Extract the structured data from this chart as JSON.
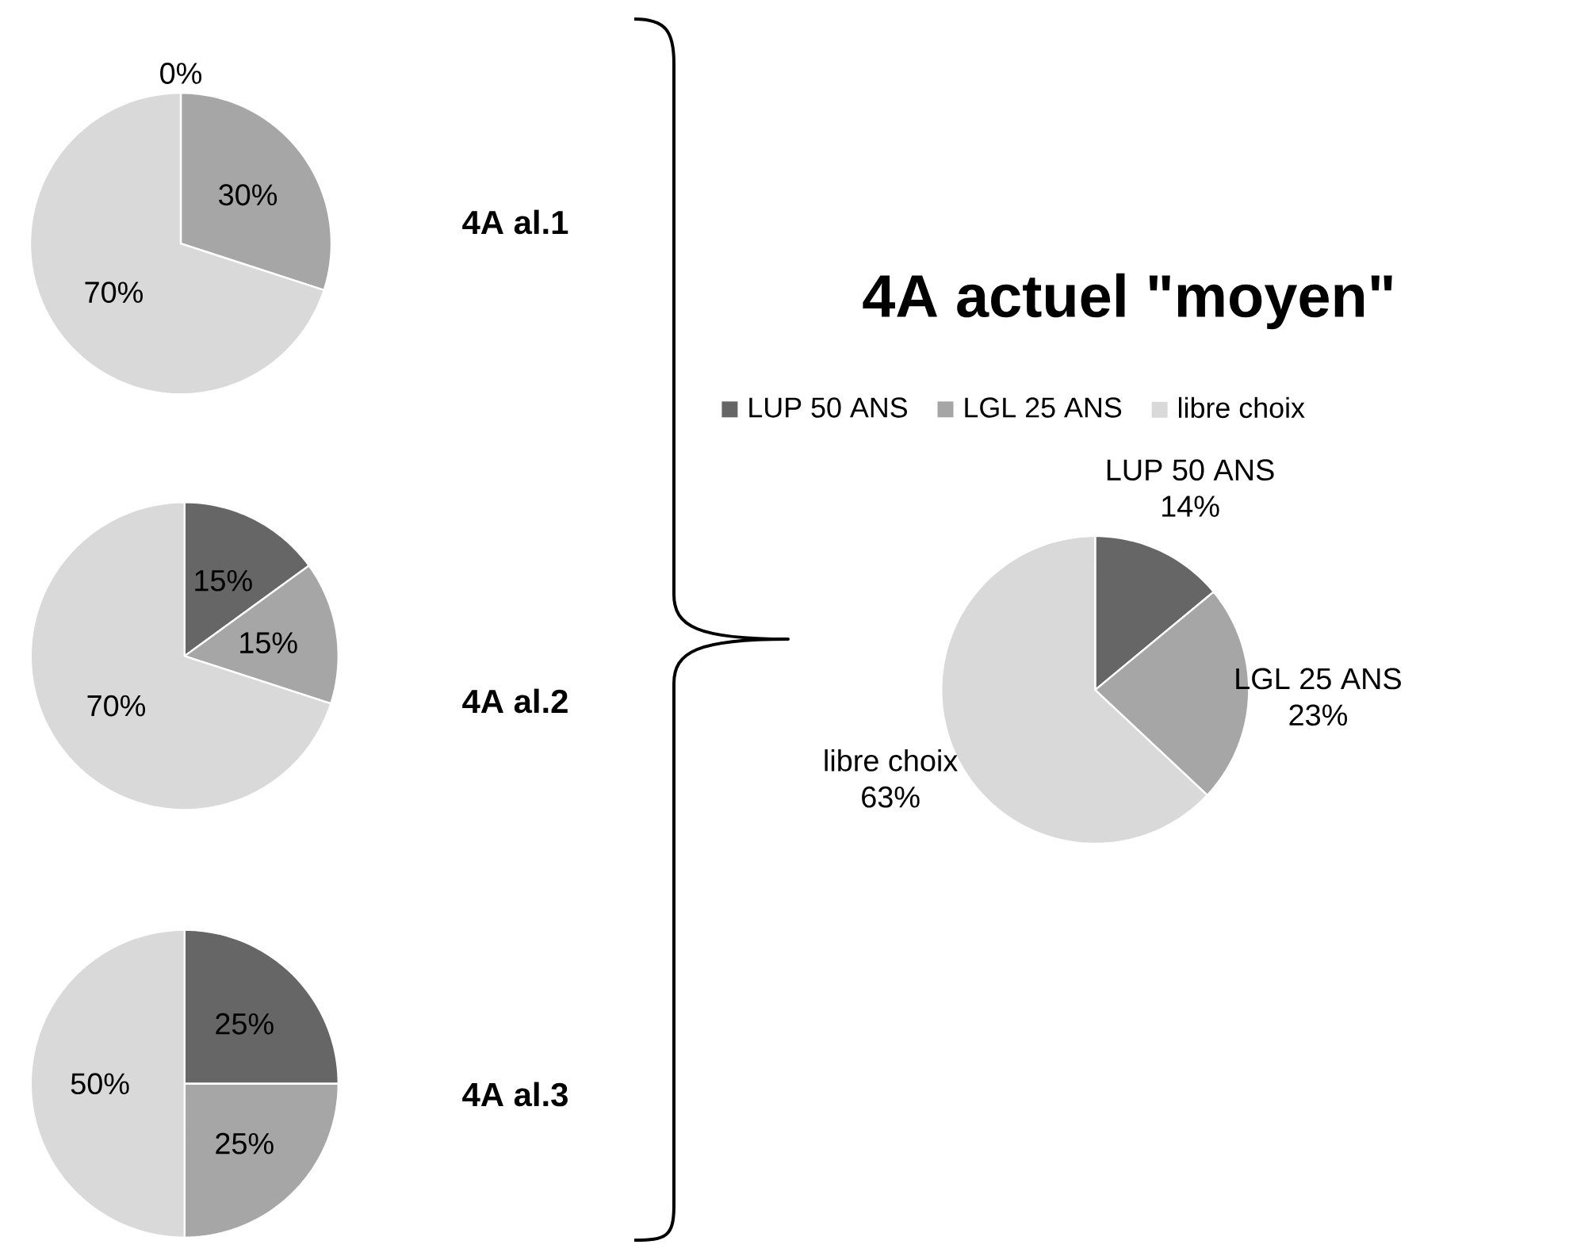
{
  "chart_data": [
    {
      "type": "pie",
      "title": "4A al.1",
      "categories": [
        null,
        null,
        null
      ],
      "values": [
        0,
        30,
        70
      ],
      "value_labels": [
        "0%",
        "30%",
        "70%"
      ],
      "colors": [
        "#666666",
        "#a6a6a6",
        "#d9d9d9"
      ]
    },
    {
      "type": "pie",
      "title": "4A al.2",
      "categories": [
        null,
        null,
        null
      ],
      "values": [
        15,
        15,
        70
      ],
      "value_labels": [
        "15%",
        "15%",
        "70%"
      ],
      "colors": [
        "#666666",
        "#a6a6a6",
        "#d9d9d9"
      ]
    },
    {
      "type": "pie",
      "title": "4A al.3",
      "categories": [
        null,
        null,
        null
      ],
      "values": [
        25,
        25,
        50
      ],
      "value_labels": [
        "25%",
        "25%",
        "50%"
      ],
      "colors": [
        "#666666",
        "#a6a6a6",
        "#d9d9d9"
      ]
    },
    {
      "type": "pie",
      "title": "4A actuel \"moyen\"",
      "categories": [
        "LUP 50 ANS",
        "LGL 25 ANS",
        "libre choix"
      ],
      "values": [
        14,
        23,
        63
      ],
      "value_labels": [
        "14%",
        "23%",
        "63%"
      ],
      "colors": [
        "#666666",
        "#a6a6a6",
        "#d9d9d9"
      ],
      "legend": "top"
    }
  ]
}
